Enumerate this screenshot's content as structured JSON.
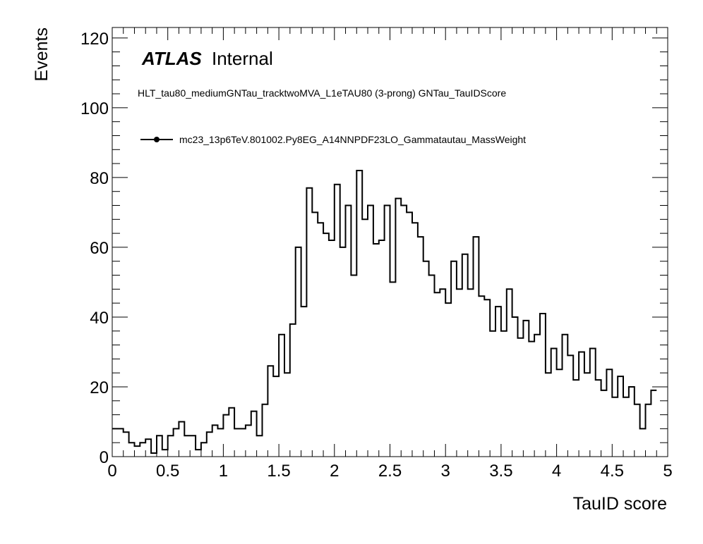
{
  "chart_data": {
    "type": "histogram",
    "xlabel": "TauID score",
    "ylabel": "Events",
    "xlim": [
      0,
      5
    ],
    "ylim": [
      0,
      123
    ],
    "x_ticks": [
      "0",
      "0.5",
      "1",
      "1.5",
      "2",
      "2.5",
      "3",
      "3.5",
      "4",
      "4.5",
      "5"
    ],
    "y_ticks": [
      "0",
      "20",
      "40",
      "60",
      "80",
      "100",
      "120"
    ],
    "bin_width": 0.05,
    "grid": false,
    "atlas_label": "ATLAS",
    "atlas_status": "Internal",
    "selection": "HLT_tau80_mediumGNTau_tracktwoMVA_L1eTAU80 (3-prong) GNTau_TauIDScore",
    "legend_position": "top-left",
    "series": [
      {
        "name": "mc23_13p6TeV.801002.Py8EG_A14NNPDF23LO_Gammatautau_MassWeight",
        "color": "#000000",
        "values": [
          8,
          8,
          7,
          4,
          3,
          4,
          5,
          1,
          6,
          2,
          6,
          8,
          10,
          6,
          6,
          2,
          4,
          7,
          9,
          8,
          12,
          14,
          8,
          8,
          9,
          13,
          6,
          15,
          26,
          23,
          35,
          24,
          38,
          60,
          43,
          77,
          70,
          67,
          64,
          62,
          78,
          60,
          72,
          52,
          82,
          68,
          72,
          61,
          62,
          72,
          50,
          74,
          72,
          70,
          67,
          63,
          56,
          52,
          47,
          48,
          44,
          56,
          48,
          58,
          48,
          63,
          46,
          45,
          36,
          43,
          36,
          48,
          40,
          34,
          39,
          33,
          35,
          41,
          24,
          31,
          25,
          35,
          29,
          22,
          30,
          24,
          31,
          22,
          19,
          25,
          17,
          23,
          17,
          20,
          15,
          8,
          15,
          19
        ]
      }
    ]
  }
}
